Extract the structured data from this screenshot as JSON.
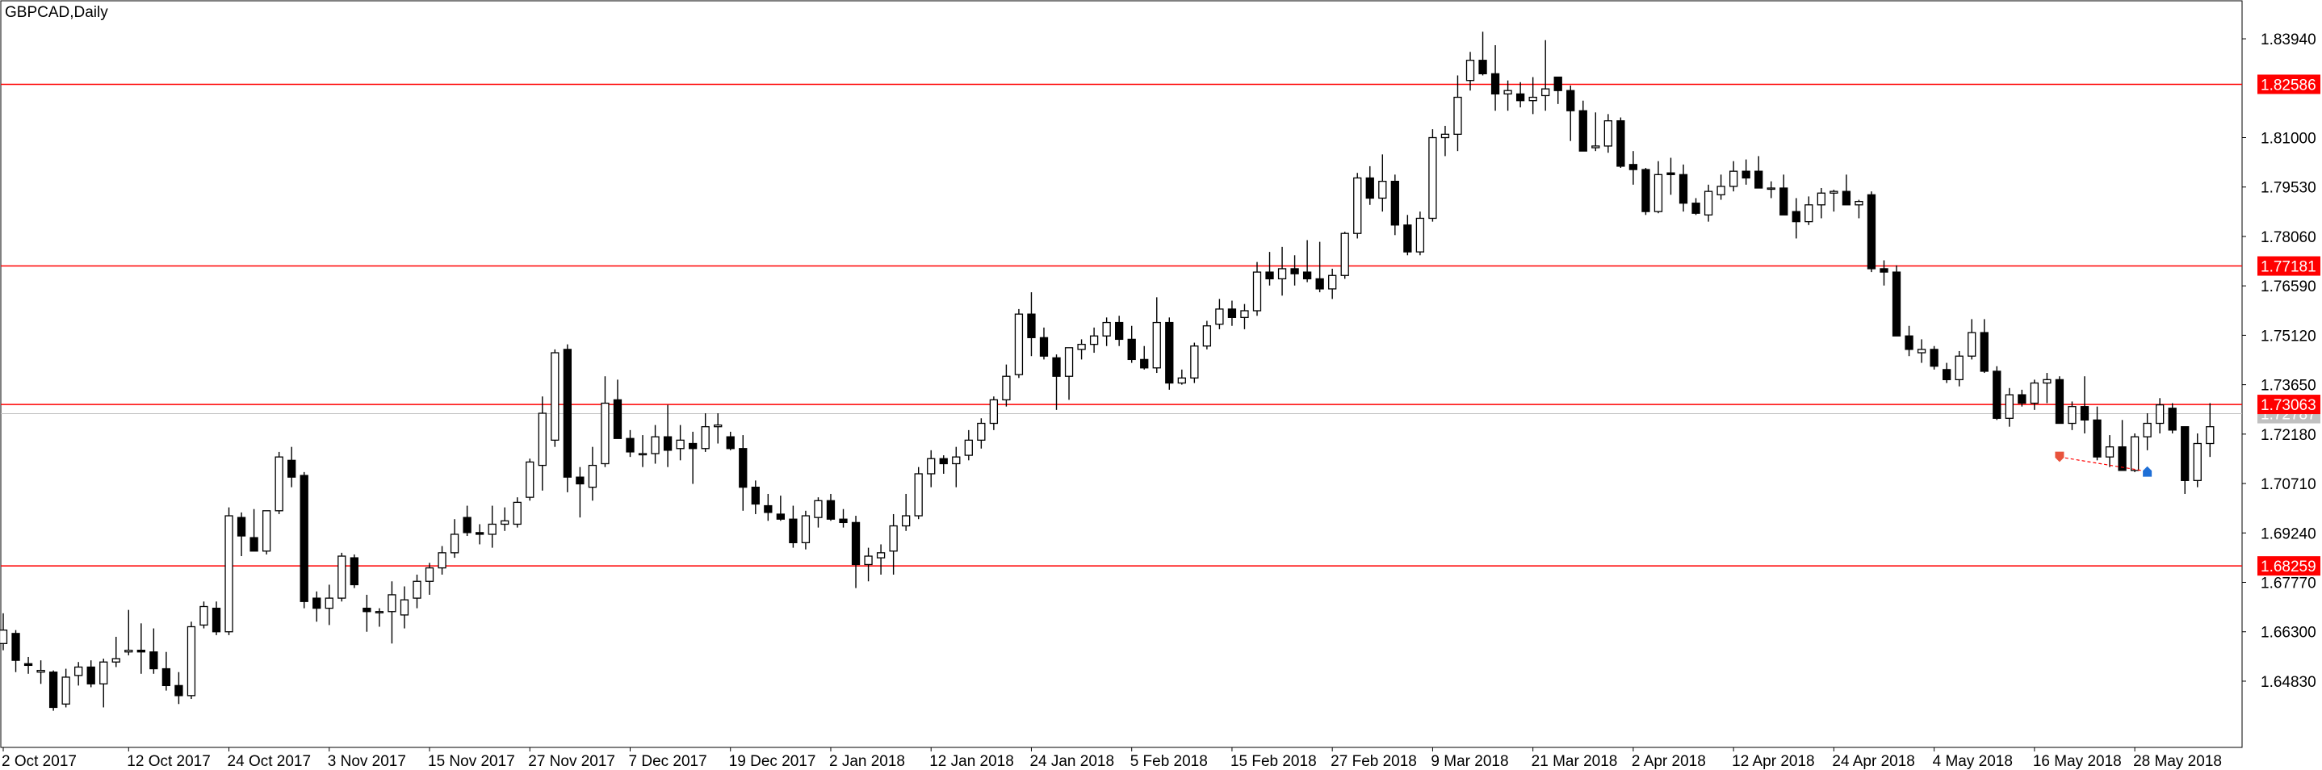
{
  "chart_data": {
    "type": "candlestick",
    "title": "GBPCAD,Daily",
    "y_range": [
      1.6286,
      1.8507
    ],
    "y_ticks": [
      "1.83940",
      "1.81000",
      "1.79530",
      "1.78060",
      "1.76590",
      "1.75120",
      "1.73650",
      "1.72180",
      "1.70710",
      "1.69240",
      "1.67770",
      "1.66300",
      "1.64830"
    ],
    "x_labels": [
      "2 Oct 2017",
      "12 Oct 2017",
      "24 Oct 2017",
      "3 Nov 2017",
      "15 Nov 2017",
      "27 Nov 2017",
      "7 Dec 2017",
      "19 Dec 2017",
      "2 Jan 2018",
      "12 Jan 2018",
      "24 Jan 2018",
      "5 Feb 2018",
      "15 Feb 2018",
      "27 Feb 2018",
      "9 Mar 2018",
      "21 Mar 2018",
      "2 Apr 2018",
      "12 Apr 2018",
      "24 Apr 2018",
      "4 May 2018",
      "16 May 2018",
      "28 May 2018"
    ],
    "x_label_bar_index": [
      0,
      10,
      18,
      26,
      34,
      42,
      50,
      58,
      66,
      74,
      82,
      90,
      98,
      106,
      114,
      122,
      130,
      138,
      146,
      154,
      162,
      170
    ],
    "horizontal_levels": [
      {
        "value": 1.82586,
        "label": "1.82586"
      },
      {
        "value": 1.77181,
        "label": "1.77181"
      },
      {
        "value": 1.73063,
        "label": "1.73063"
      },
      {
        "value": 1.68259,
        "label": "1.68259"
      }
    ],
    "current_price": {
      "value": 1.72787,
      "label": "1.72787"
    },
    "colors": {
      "level_line": "#ff0000",
      "level_tag": "#ff0000",
      "current_line": "#c0c0c0",
      "current_tag": "#c0c0c0",
      "candle_bull_fill": "#ffffff",
      "candle_bear_fill": "#000000",
      "candle_outline": "#000000",
      "sell_marker": "#e8533c",
      "buy_marker": "#1f6fd6",
      "trade_link": "#ff0000"
    },
    "trade_markers": [
      {
        "bar_index": 164,
        "price": 1.715,
        "kind": "sell",
        "icon": "sell-arrow-icon"
      },
      {
        "bar_index": 171,
        "price": 1.7107,
        "kind": "buy",
        "icon": "buy-arrow-icon"
      }
    ],
    "candles": [
      [
        1.6595,
        1.6685,
        1.6575,
        1.6635
      ],
      [
        1.6625,
        1.6635,
        1.651,
        1.6545
      ],
      [
        1.6535,
        1.6555,
        1.6505,
        1.653
      ],
      [
        1.651,
        1.6545,
        1.6475,
        1.6515
      ],
      [
        1.651,
        1.6515,
        1.6395,
        1.6405
      ],
      [
        1.6415,
        1.652,
        1.6405,
        1.6495
      ],
      [
        1.65,
        1.654,
        1.647,
        1.6525
      ],
      [
        1.6525,
        1.6545,
        1.6465,
        1.6475
      ],
      [
        1.6475,
        1.655,
        1.6405,
        1.654
      ],
      [
        1.654,
        1.6615,
        1.6525,
        1.655
      ],
      [
        1.657,
        1.6695,
        1.656,
        1.6575
      ],
      [
        1.6575,
        1.6655,
        1.6505,
        1.657
      ],
      [
        1.657,
        1.664,
        1.6505,
        1.652
      ],
      [
        1.652,
        1.657,
        1.6455,
        1.647
      ],
      [
        1.647,
        1.651,
        1.6415,
        1.644
      ],
      [
        1.644,
        1.666,
        1.643,
        1.6645
      ],
      [
        1.665,
        1.672,
        1.664,
        1.6705
      ],
      [
        1.67,
        1.672,
        1.662,
        1.663
      ],
      [
        1.663,
        1.7,
        1.662,
        1.6975
      ],
      [
        1.697,
        1.6985,
        1.6855,
        1.6915
      ],
      [
        1.691,
        1.6995,
        1.687,
        1.687
      ],
      [
        1.687,
        1.698,
        1.686,
        1.699
      ],
      [
        1.699,
        1.7165,
        1.698,
        1.715
      ],
      [
        1.714,
        1.718,
        1.706,
        1.709
      ],
      [
        1.7095,
        1.7105,
        1.67,
        1.672
      ],
      [
        1.673,
        1.675,
        1.666,
        1.67
      ],
      [
        1.67,
        1.677,
        1.665,
        1.673
      ],
      [
        1.673,
        1.6865,
        1.672,
        1.6855
      ],
      [
        1.685,
        1.686,
        1.676,
        1.677
      ],
      [
        1.67,
        1.674,
        1.663,
        1.669
      ],
      [
        1.669,
        1.67,
        1.6645,
        1.669
      ],
      [
        1.669,
        1.678,
        1.6595,
        1.674
      ],
      [
        1.668,
        1.6765,
        1.664,
        1.6725
      ],
      [
        1.673,
        1.68,
        1.67,
        1.678
      ],
      [
        1.678,
        1.6835,
        1.674,
        1.682
      ],
      [
        1.682,
        1.6885,
        1.68,
        1.6865
      ],
      [
        1.6865,
        1.6965,
        1.685,
        1.692
      ],
      [
        1.697,
        1.7005,
        1.6915,
        1.6925
      ],
      [
        1.6925,
        1.695,
        1.689,
        1.692
      ],
      [
        1.692,
        1.7005,
        1.688,
        1.695
      ],
      [
        1.695,
        1.7,
        1.693,
        1.696
      ],
      [
        1.695,
        1.703,
        1.694,
        1.7015
      ],
      [
        1.703,
        1.7145,
        1.702,
        1.7135
      ],
      [
        1.7125,
        1.733,
        1.705,
        1.728
      ],
      [
        1.72,
        1.747,
        1.718,
        1.746
      ],
      [
        1.747,
        1.7485,
        1.7045,
        1.709
      ],
      [
        1.709,
        1.712,
        1.697,
        1.707
      ],
      [
        1.706,
        1.718,
        1.702,
        1.7125
      ],
      [
        1.713,
        1.739,
        1.712,
        1.731
      ],
      [
        1.732,
        1.738,
        1.722,
        1.7205
      ],
      [
        1.7205,
        1.723,
        1.715,
        1.7165
      ],
      [
        1.716,
        1.7215,
        1.712,
        1.716
      ],
      [
        1.716,
        1.7245,
        1.713,
        1.721
      ],
      [
        1.721,
        1.7305,
        1.712,
        1.717
      ],
      [
        1.7175,
        1.7245,
        1.714,
        1.72
      ],
      [
        1.719,
        1.7225,
        1.707,
        1.7175
      ],
      [
        1.7175,
        1.728,
        1.7165,
        1.724
      ],
      [
        1.724,
        1.728,
        1.719,
        1.7245
      ],
      [
        1.721,
        1.7225,
        1.717,
        1.7175
      ],
      [
        1.7175,
        1.7215,
        1.699,
        1.706
      ],
      [
        1.706,
        1.708,
        1.698,
        1.701
      ],
      [
        1.7005,
        1.704,
        1.696,
        1.6985
      ],
      [
        1.698,
        1.7035,
        1.696,
        1.6965
      ],
      [
        1.6965,
        1.7005,
        1.688,
        1.6895
      ],
      [
        1.6895,
        1.699,
        1.6875,
        1.6975
      ],
      [
        1.697,
        1.703,
        1.694,
        1.702
      ],
      [
        1.702,
        1.704,
        1.696,
        1.6965
      ],
      [
        1.6965,
        1.6995,
        1.694,
        1.6955
      ],
      [
        1.6955,
        1.6975,
        1.676,
        1.683
      ],
      [
        1.683,
        1.688,
        1.678,
        1.6855
      ],
      [
        1.685,
        1.689,
        1.68,
        1.6865
      ],
      [
        1.687,
        1.698,
        1.68,
        1.6945
      ],
      [
        1.6945,
        1.704,
        1.693,
        1.6975
      ],
      [
        1.6975,
        1.712,
        1.6965,
        1.71
      ],
      [
        1.71,
        1.717,
        1.706,
        1.7145
      ],
      [
        1.7145,
        1.7155,
        1.71,
        1.713
      ],
      [
        1.713,
        1.718,
        1.706,
        1.715
      ],
      [
        1.7155,
        1.723,
        1.714,
        1.72
      ],
      [
        1.72,
        1.7265,
        1.7175,
        1.725
      ],
      [
        1.725,
        1.733,
        1.723,
        1.732
      ],
      [
        1.732,
        1.7425,
        1.73,
        1.739
      ],
      [
        1.7395,
        1.759,
        1.7385,
        1.7575
      ],
      [
        1.7575,
        1.764,
        1.745,
        1.7505
      ],
      [
        1.7505,
        1.7535,
        1.744,
        1.745
      ],
      [
        1.7445,
        1.7455,
        1.729,
        1.739
      ],
      [
        1.739,
        1.747,
        1.732,
        1.7475
      ],
      [
        1.747,
        1.75,
        1.744,
        1.7485
      ],
      [
        1.7485,
        1.7535,
        1.746,
        1.751
      ],
      [
        1.751,
        1.7565,
        1.748,
        1.755
      ],
      [
        1.755,
        1.757,
        1.748,
        1.75
      ],
      [
        1.75,
        1.754,
        1.743,
        1.744
      ],
      [
        1.744,
        1.748,
        1.741,
        1.7415
      ],
      [
        1.7415,
        1.7625,
        1.74,
        1.755
      ],
      [
        1.755,
        1.7565,
        1.735,
        1.737
      ],
      [
        1.737,
        1.741,
        1.7365,
        1.7385
      ],
      [
        1.7385,
        1.749,
        1.737,
        1.748
      ],
      [
        1.748,
        1.7555,
        1.747,
        1.754
      ],
      [
        1.7545,
        1.762,
        1.753,
        1.759
      ],
      [
        1.759,
        1.7615,
        1.754,
        1.7565
      ],
      [
        1.7565,
        1.7605,
        1.753,
        1.7585
      ],
      [
        1.7585,
        1.773,
        1.757,
        1.77
      ],
      [
        1.77,
        1.776,
        1.766,
        1.768
      ],
      [
        1.768,
        1.7775,
        1.763,
        1.771
      ],
      [
        1.771,
        1.775,
        1.766,
        1.7695
      ],
      [
        1.77,
        1.7795,
        1.767,
        1.768
      ],
      [
        1.768,
        1.779,
        1.764,
        1.765
      ],
      [
        1.765,
        1.771,
        1.762,
        1.769
      ],
      [
        1.769,
        1.782,
        1.768,
        1.7815
      ],
      [
        1.7815,
        1.7995,
        1.78,
        1.798
      ],
      [
        1.798,
        1.8015,
        1.79,
        1.792
      ],
      [
        1.792,
        1.805,
        1.788,
        1.797
      ],
      [
        1.797,
        1.799,
        1.781,
        1.784
      ],
      [
        1.784,
        1.787,
        1.775,
        1.776
      ],
      [
        1.776,
        1.788,
        1.775,
        1.786
      ],
      [
        1.786,
        1.8125,
        1.785,
        1.81
      ],
      [
        1.81,
        1.8135,
        1.8045,
        1.811
      ],
      [
        1.811,
        1.8285,
        1.806,
        1.822
      ],
      [
        1.827,
        1.8355,
        1.824,
        1.833
      ],
      [
        1.833,
        1.8415,
        1.8285,
        1.829
      ],
      [
        1.829,
        1.8375,
        1.818,
        1.823
      ],
      [
        1.823,
        1.827,
        1.818,
        1.824
      ],
      [
        1.823,
        1.8265,
        1.819,
        1.821
      ],
      [
        1.821,
        1.828,
        1.817,
        1.822
      ],
      [
        1.8225,
        1.839,
        1.818,
        1.8245
      ],
      [
        1.828,
        1.8275,
        1.82,
        1.824
      ],
      [
        1.824,
        1.8255,
        1.809,
        1.818
      ],
      [
        1.818,
        1.821,
        1.806,
        1.806
      ],
      [
        1.807,
        1.8175,
        1.806,
        1.8075
      ],
      [
        1.8075,
        1.817,
        1.8055,
        1.815
      ],
      [
        1.815,
        1.816,
        1.801,
        1.8015
      ],
      [
        1.802,
        1.806,
        1.796,
        1.8005
      ],
      [
        1.8005,
        1.801,
        1.787,
        1.788
      ],
      [
        1.788,
        1.803,
        1.7875,
        1.799
      ],
      [
        1.7995,
        1.804,
        1.793,
        1.799
      ],
      [
        1.799,
        1.802,
        1.788,
        1.7905
      ],
      [
        1.7905,
        1.792,
        1.787,
        1.7875
      ],
      [
        1.787,
        1.796,
        1.785,
        1.794
      ],
      [
        1.793,
        1.799,
        1.7915,
        1.7955
      ],
      [
        1.7955,
        1.803,
        1.794,
        1.8
      ],
      [
        1.8,
        1.8035,
        1.796,
        1.798
      ],
      [
        1.8,
        1.8045,
        1.797,
        1.795
      ],
      [
        1.795,
        1.797,
        1.792,
        1.795
      ],
      [
        1.795,
        1.799,
        1.787,
        1.787
      ],
      [
        1.788,
        1.792,
        1.78,
        1.785
      ],
      [
        1.785,
        1.7925,
        1.784,
        1.79
      ],
      [
        1.79,
        1.795,
        1.786,
        1.7935
      ],
      [
        1.7935,
        1.7945,
        1.788,
        1.794
      ],
      [
        1.794,
        1.799,
        1.79,
        1.79
      ],
      [
        1.79,
        1.7915,
        1.786,
        1.791
      ],
      [
        1.793,
        1.794,
        1.77,
        1.771
      ],
      [
        1.771,
        1.7735,
        1.766,
        1.77
      ],
      [
        1.77,
        1.772,
        1.751,
        1.751
      ],
      [
        1.751,
        1.754,
        1.745,
        1.747
      ],
      [
        1.746,
        1.75,
        1.743,
        1.747
      ],
      [
        1.747,
        1.748,
        1.741,
        1.742
      ],
      [
        1.741,
        1.743,
        1.737,
        1.738
      ],
      [
        1.738,
        1.7465,
        1.736,
        1.745
      ],
      [
        1.745,
        1.756,
        1.744,
        1.752
      ],
      [
        1.752,
        1.756,
        1.74,
        1.7405
      ],
      [
        1.7405,
        1.742,
        1.726,
        1.7265
      ],
      [
        1.7265,
        1.7355,
        1.724,
        1.7335
      ],
      [
        1.7335,
        1.735,
        1.73,
        1.731
      ],
      [
        1.731,
        1.738,
        1.729,
        1.737
      ],
      [
        1.737,
        1.74,
        1.731,
        1.738
      ],
      [
        1.738,
        1.739,
        1.725,
        1.725
      ],
      [
        1.725,
        1.7315,
        1.723,
        1.73
      ],
      [
        1.73,
        1.739,
        1.722,
        1.726
      ],
      [
        1.726,
        1.73,
        1.714,
        1.715
      ],
      [
        1.715,
        1.7215,
        1.712,
        1.718
      ],
      [
        1.718,
        1.726,
        1.711,
        1.711
      ],
      [
        1.711,
        1.722,
        1.7105,
        1.721
      ],
      [
        1.721,
        1.728,
        1.717,
        1.725
      ],
      [
        1.725,
        1.7325,
        1.722,
        1.7305
      ],
      [
        1.7295,
        1.731,
        1.722,
        1.723
      ],
      [
        1.724,
        1.724,
        1.704,
        1.708
      ],
      [
        1.708,
        1.722,
        1.706,
        1.719
      ],
      [
        1.719,
        1.731,
        1.715,
        1.724
      ]
    ]
  }
}
